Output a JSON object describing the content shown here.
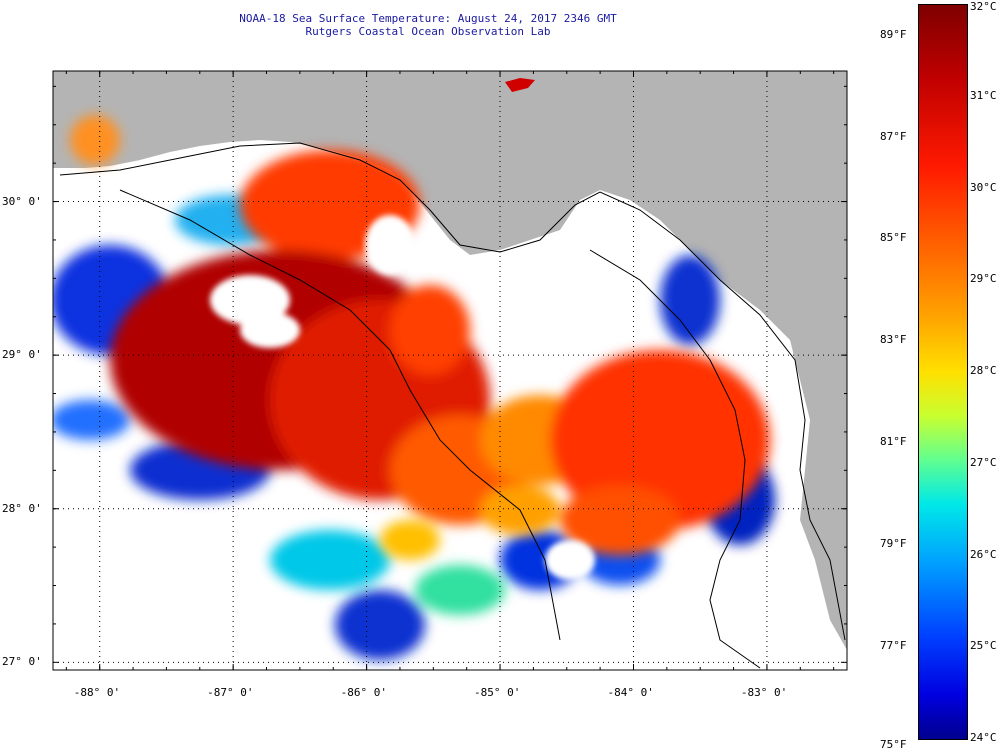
{
  "title": {
    "line1": "NOAA-18 Sea Surface Temperature:  August 24, 2017 2346 GMT",
    "line2": "Rutgers Coastal Ocean Observation Lab"
  },
  "map": {
    "lat_labels": [
      "30° 0'",
      "29° 0'",
      "28° 0'",
      "27° 0'"
    ],
    "lon_labels": [
      "-88° 0'",
      "-87° 0'",
      "-86° 0'",
      "-85° 0'",
      "-84° 0'",
      "-83° 0'"
    ],
    "lat_range": [
      26.95,
      30.85
    ],
    "lon_range": [
      -88.35,
      -82.4
    ]
  },
  "colorbar": {
    "fahrenheit_labels": [
      "89°F",
      "87°F",
      "85°F",
      "83°F",
      "81°F",
      "79°F",
      "77°F",
      "75°F"
    ],
    "celsius_labels": [
      "32°C",
      "31°C",
      "30°C",
      "29°C",
      "28°C",
      "27°C",
      "26°C",
      "25°C",
      "24°C"
    ],
    "range_celsius": [
      24,
      32
    ]
  },
  "colors": {
    "land": "#b4b4b4",
    "title_text": "#1a1aa0"
  }
}
